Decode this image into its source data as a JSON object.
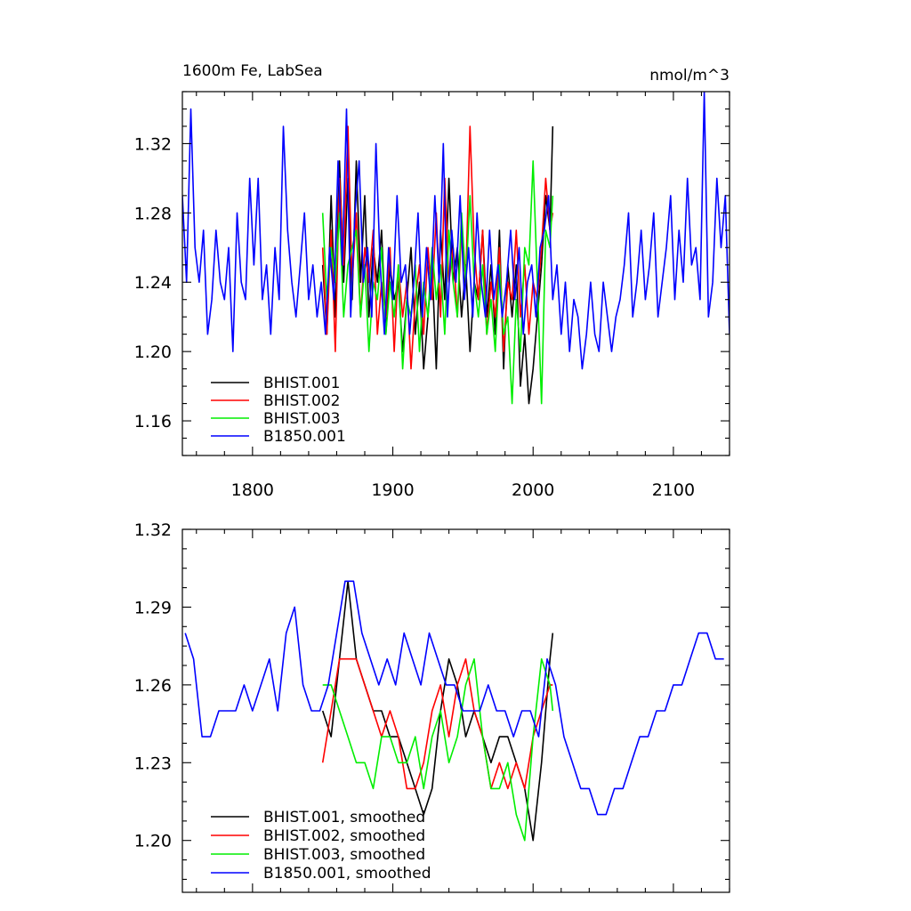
{
  "chart_data": [
    {
      "type": "line",
      "title_left": "1600m Fe, LabSea",
      "title_right": "nmol/m^3",
      "xlim": [
        1750,
        2140
      ],
      "ylim": [
        1.14,
        1.35
      ],
      "xticks": [
        1800,
        1900,
        2000,
        2100
      ],
      "xticklabels": [
        "1800",
        "1900",
        "2000",
        "2100"
      ],
      "yticks": [
        1.16,
        1.2,
        1.24,
        1.28,
        1.32
      ],
      "yticklabels": [
        "1.16",
        "1.20",
        "1.24",
        "1.28",
        "1.32"
      ],
      "legend_position": "lower-left",
      "series": [
        {
          "name": "BHIST.001",
          "color": "#000000",
          "x": [
            1850,
            1853,
            1856,
            1859,
            1862,
            1865,
            1868,
            1871,
            1874,
            1877,
            1880,
            1883,
            1886,
            1889,
            1892,
            1895,
            1898,
            1901,
            1904,
            1907,
            1910,
            1913,
            1916,
            1919,
            1922,
            1925,
            1928,
            1931,
            1934,
            1937,
            1940,
            1943,
            1946,
            1949,
            1952,
            1955,
            1958,
            1961,
            1964,
            1967,
            1970,
            1973,
            1976,
            1979,
            1982,
            1985,
            1988,
            1991,
            1994,
            1997,
            2000,
            2003,
            2006,
            2009,
            2012,
            2014
          ],
          "y": [
            1.25,
            1.21,
            1.29,
            1.22,
            1.31,
            1.24,
            1.3,
            1.23,
            1.31,
            1.24,
            1.29,
            1.22,
            1.26,
            1.24,
            1.27,
            1.21,
            1.25,
            1.23,
            1.24,
            1.2,
            1.23,
            1.26,
            1.21,
            1.24,
            1.19,
            1.22,
            1.25,
            1.19,
            1.27,
            1.23,
            1.3,
            1.24,
            1.26,
            1.22,
            1.25,
            1.2,
            1.24,
            1.23,
            1.27,
            1.22,
            1.25,
            1.21,
            1.27,
            1.19,
            1.25,
            1.22,
            1.25,
            1.18,
            1.21,
            1.17,
            1.19,
            1.22,
            1.25,
            1.29,
            1.27,
            1.33
          ]
        },
        {
          "name": "BHIST.002",
          "color": "#ff0000",
          "x": [
            1850,
            1853,
            1856,
            1859,
            1862,
            1865,
            1868,
            1871,
            1874,
            1877,
            1880,
            1883,
            1886,
            1889,
            1892,
            1895,
            1898,
            1901,
            1904,
            1907,
            1910,
            1913,
            1916,
            1919,
            1922,
            1925,
            1928,
            1931,
            1934,
            1937,
            1940,
            1943,
            1946,
            1949,
            1952,
            1955,
            1958,
            1961,
            1964,
            1967,
            1970,
            1973,
            1976,
            1979,
            1982,
            1985,
            1988,
            1991,
            1994,
            1997,
            2000,
            2003,
            2006,
            2009,
            2012,
            2014
          ],
          "y": [
            1.26,
            1.21,
            1.27,
            1.2,
            1.3,
            1.25,
            1.33,
            1.24,
            1.28,
            1.22,
            1.26,
            1.24,
            1.27,
            1.21,
            1.24,
            1.22,
            1.26,
            1.2,
            1.25,
            1.22,
            1.24,
            1.19,
            1.23,
            1.25,
            1.21,
            1.26,
            1.23,
            1.28,
            1.22,
            1.3,
            1.24,
            1.26,
            1.22,
            1.27,
            1.24,
            1.33,
            1.26,
            1.23,
            1.27,
            1.21,
            1.24,
            1.22,
            1.26,
            1.2,
            1.24,
            1.23,
            1.27,
            1.22,
            1.25,
            1.21,
            1.24,
            1.23,
            1.26,
            1.3,
            1.27,
            1.28
          ]
        },
        {
          "name": "BHIST.003",
          "color": "#00ee00",
          "x": [
            1850,
            1853,
            1856,
            1859,
            1862,
            1865,
            1868,
            1871,
            1874,
            1877,
            1880,
            1883,
            1886,
            1889,
            1892,
            1895,
            1898,
            1901,
            1904,
            1907,
            1910,
            1913,
            1916,
            1919,
            1922,
            1925,
            1928,
            1931,
            1934,
            1937,
            1940,
            1943,
            1946,
            1949,
            1952,
            1955,
            1958,
            1961,
            1964,
            1967,
            1970,
            1973,
            1976,
            1979,
            1982,
            1985,
            1988,
            1991,
            1994,
            1997,
            2000,
            2003,
            2006,
            2009,
            2012,
            2014
          ],
          "y": [
            1.28,
            1.23,
            1.26,
            1.24,
            1.28,
            1.22,
            1.25,
            1.26,
            1.27,
            1.22,
            1.25,
            1.2,
            1.24,
            1.23,
            1.26,
            1.21,
            1.24,
            1.22,
            1.25,
            1.19,
            1.23,
            1.22,
            1.25,
            1.2,
            1.24,
            1.22,
            1.26,
            1.23,
            1.25,
            1.21,
            1.27,
            1.24,
            1.22,
            1.28,
            1.24,
            1.29,
            1.24,
            1.22,
            1.25,
            1.21,
            1.23,
            1.2,
            1.25,
            1.21,
            1.22,
            1.17,
            1.23,
            1.2,
            1.26,
            1.25,
            1.31,
            1.24,
            1.17,
            1.27,
            1.26,
            1.29
          ]
        },
        {
          "name": "B1850.001",
          "color": "#0000ff",
          "x": [
            1750,
            1753,
            1756,
            1759,
            1762,
            1765,
            1768,
            1771,
            1774,
            1777,
            1780,
            1783,
            1786,
            1789,
            1792,
            1795,
            1798,
            1801,
            1804,
            1807,
            1810,
            1813,
            1816,
            1819,
            1822,
            1825,
            1828,
            1831,
            1834,
            1837,
            1840,
            1843,
            1846,
            1849,
            1852,
            1855,
            1858,
            1861,
            1864,
            1867,
            1870,
            1873,
            1876,
            1879,
            1882,
            1885,
            1888,
            1891,
            1894,
            1897,
            1900,
            1903,
            1906,
            1909,
            1912,
            1915,
            1918,
            1921,
            1924,
            1927,
            1930,
            1933,
            1936,
            1939,
            1942,
            1945,
            1948,
            1951,
            1954,
            1957,
            1960,
            1963,
            1966,
            1969,
            1972,
            1975,
            1978,
            1981,
            1984,
            1987,
            1990,
            1993,
            1996,
            1999,
            2002,
            2005,
            2008,
            2011,
            2014,
            2017,
            2020,
            2023,
            2026,
            2029,
            2032,
            2035,
            2038,
            2041,
            2044,
            2047,
            2050,
            2053,
            2056,
            2059,
            2062,
            2065,
            2068,
            2071,
            2074,
            2077,
            2080,
            2083,
            2086,
            2089,
            2092,
            2095,
            2098,
            2101,
            2104,
            2107,
            2110,
            2113,
            2116,
            2119,
            2122,
            2125,
            2128,
            2131,
            2134,
            2137,
            2140
          ],
          "y": [
            1.29,
            1.24,
            1.34,
            1.26,
            1.24,
            1.27,
            1.21,
            1.23,
            1.27,
            1.24,
            1.23,
            1.26,
            1.2,
            1.28,
            1.24,
            1.23,
            1.3,
            1.25,
            1.3,
            1.23,
            1.25,
            1.21,
            1.26,
            1.23,
            1.33,
            1.27,
            1.24,
            1.22,
            1.25,
            1.28,
            1.23,
            1.25,
            1.22,
            1.24,
            1.21,
            1.26,
            1.23,
            1.31,
            1.25,
            1.34,
            1.22,
            1.28,
            1.31,
            1.24,
            1.26,
            1.22,
            1.32,
            1.25,
            1.21,
            1.26,
            1.23,
            1.29,
            1.24,
            1.25,
            1.21,
            1.24,
            1.28,
            1.22,
            1.26,
            1.23,
            1.29,
            1.24,
            1.32,
            1.22,
            1.27,
            1.24,
            1.29,
            1.23,
            1.26,
            1.22,
            1.28,
            1.24,
            1.22,
            1.27,
            1.23,
            1.25,
            1.22,
            1.24,
            1.27,
            1.23,
            1.26,
            1.21,
            1.24,
            1.25,
            1.22,
            1.26,
            1.27,
            1.29,
            1.23,
            1.25,
            1.21,
            1.24,
            1.2,
            1.23,
            1.22,
            1.19,
            1.21,
            1.24,
            1.21,
            1.2,
            1.24,
            1.22,
            1.2,
            1.22,
            1.23,
            1.25,
            1.28,
            1.22,
            1.24,
            1.27,
            1.23,
            1.25,
            1.28,
            1.22,
            1.24,
            1.26,
            1.29,
            1.23,
            1.27,
            1.24,
            1.3,
            1.25,
            1.26,
            1.23,
            1.35,
            1.22,
            1.24,
            1.3,
            1.26,
            1.29,
            1.21
          ]
        }
      ]
    },
    {
      "type": "line",
      "xlim": [
        1750,
        2140
      ],
      "ylim": [
        1.18,
        1.32
      ],
      "yticks": [
        1.2,
        1.23,
        1.26,
        1.29,
        1.32
      ],
      "yticklabels": [
        "1.20",
        "1.23",
        "1.26",
        "1.29",
        "1.32"
      ],
      "legend_position": "lower-left",
      "series": [
        {
          "name": "BHIST.001, smoothed",
          "color": "#000000",
          "x": [
            1850,
            1856,
            1862,
            1868,
            1874,
            1880,
            1886,
            1892,
            1898,
            1904,
            1910,
            1916,
            1922,
            1928,
            1934,
            1940,
            1946,
            1952,
            1958,
            1964,
            1970,
            1976,
            1982,
            1988,
            1994,
            2000,
            2006,
            2012,
            2014
          ],
          "y": [
            1.25,
            1.24,
            1.27,
            1.3,
            1.27,
            1.26,
            1.25,
            1.25,
            1.24,
            1.24,
            1.23,
            1.22,
            1.21,
            1.22,
            1.25,
            1.27,
            1.26,
            1.24,
            1.25,
            1.24,
            1.23,
            1.24,
            1.24,
            1.23,
            1.22,
            1.2,
            1.23,
            1.27,
            1.28
          ]
        },
        {
          "name": "BHIST.002, smoothed",
          "color": "#ff0000",
          "x": [
            1850,
            1856,
            1862,
            1868,
            1874,
            1880,
            1886,
            1892,
            1898,
            1904,
            1910,
            1916,
            1922,
            1928,
            1934,
            1940,
            1946,
            1952,
            1958,
            1964,
            1970,
            1976,
            1982,
            1988,
            1994,
            2000,
            2006,
            2012,
            2014
          ],
          "y": [
            1.23,
            1.25,
            1.27,
            1.27,
            1.27,
            1.26,
            1.25,
            1.24,
            1.25,
            1.24,
            1.22,
            1.22,
            1.23,
            1.25,
            1.26,
            1.24,
            1.26,
            1.27,
            1.25,
            1.24,
            1.22,
            1.23,
            1.22,
            1.23,
            1.22,
            1.24,
            1.25,
            1.26,
            1.26
          ]
        },
        {
          "name": "BHIST.003, smoothed",
          "color": "#00ee00",
          "x": [
            1850,
            1856,
            1862,
            1868,
            1874,
            1880,
            1886,
            1892,
            1898,
            1904,
            1910,
            1916,
            1922,
            1928,
            1934,
            1940,
            1946,
            1952,
            1958,
            1964,
            1970,
            1976,
            1982,
            1988,
            1994,
            2000,
            2006,
            2012,
            2014
          ],
          "y": [
            1.26,
            1.26,
            1.25,
            1.24,
            1.23,
            1.23,
            1.22,
            1.24,
            1.24,
            1.23,
            1.23,
            1.24,
            1.22,
            1.24,
            1.25,
            1.23,
            1.24,
            1.26,
            1.27,
            1.24,
            1.22,
            1.22,
            1.23,
            1.21,
            1.2,
            1.24,
            1.27,
            1.26,
            1.25
          ]
        },
        {
          "name": "B1850.001, smoothed",
          "color": "#0000ff",
          "x": [
            1752,
            1758,
            1764,
            1770,
            1776,
            1782,
            1788,
            1794,
            1800,
            1806,
            1812,
            1818,
            1824,
            1830,
            1836,
            1842,
            1848,
            1854,
            1860,
            1866,
            1872,
            1878,
            1884,
            1890,
            1896,
            1902,
            1908,
            1914,
            1920,
            1926,
            1932,
            1938,
            1944,
            1950,
            1956,
            1962,
            1968,
            1974,
            1980,
            1986,
            1992,
            1998,
            2004,
            2010,
            2016,
            2022,
            2028,
            2034,
            2040,
            2046,
            2052,
            2058,
            2064,
            2070,
            2076,
            2082,
            2088,
            2094,
            2100,
            2106,
            2112,
            2118,
            2124,
            2130,
            2136
          ],
          "y": [
            1.28,
            1.27,
            1.24,
            1.24,
            1.25,
            1.25,
            1.25,
            1.26,
            1.25,
            1.26,
            1.27,
            1.25,
            1.28,
            1.29,
            1.26,
            1.25,
            1.25,
            1.26,
            1.28,
            1.3,
            1.3,
            1.28,
            1.27,
            1.26,
            1.27,
            1.26,
            1.28,
            1.27,
            1.26,
            1.28,
            1.27,
            1.26,
            1.26,
            1.25,
            1.25,
            1.25,
            1.26,
            1.25,
            1.25,
            1.24,
            1.25,
            1.25,
            1.24,
            1.27,
            1.26,
            1.24,
            1.23,
            1.22,
            1.22,
            1.21,
            1.21,
            1.22,
            1.22,
            1.23,
            1.24,
            1.24,
            1.25,
            1.25,
            1.26,
            1.26,
            1.27,
            1.28,
            1.28,
            1.27,
            1.27
          ]
        }
      ]
    }
  ]
}
